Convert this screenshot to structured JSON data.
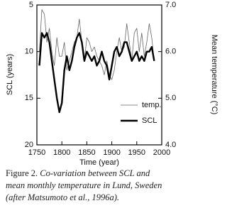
{
  "chart_data": {
    "type": "line",
    "xlabel": "Time (year)",
    "ylabel": "SCL (years)",
    "y2label": "Mean temperature (°C)",
    "x": [
      1755,
      1760,
      1765,
      1770,
      1775,
      1780,
      1785,
      1790,
      1795,
      1800,
      1805,
      1810,
      1815,
      1820,
      1825,
      1830,
      1835,
      1840,
      1845,
      1850,
      1855,
      1860,
      1865,
      1870,
      1875,
      1880,
      1885,
      1890,
      1895,
      1900,
      1905,
      1910,
      1915,
      1920,
      1925,
      1930,
      1935,
      1940,
      1945,
      1950,
      1955,
      1960,
      1965,
      1970,
      1975,
      1980,
      1985
    ],
    "series": [
      {
        "name": "temp.",
        "color": "#666666",
        "axis": "y2",
        "values": [
          6.0,
          6.9,
          6.8,
          6.2,
          6.5,
          6.0,
          5.7,
          6.3,
          5.9,
          5.9,
          6.2,
          5.6,
          5.8,
          6.0,
          6.2,
          6.3,
          6.7,
          6.2,
          5.8,
          6.3,
          6.2,
          6.0,
          6.1,
          5.9,
          5.8,
          5.7,
          5.5,
          5.8,
          5.5,
          5.4,
          5.6,
          6.0,
          6.3,
          6.0,
          6.1,
          6.6,
          6.2,
          5.8,
          6.4,
          6.5,
          6.0,
          6.4,
          5.9,
          6.2,
          6.6,
          6.3,
          5.8
        ]
      },
      {
        "name": "SCL",
        "color": "#000000",
        "values": [
          11.5,
          8.0,
          8.5,
          8.0,
          9.0,
          11.0,
          13.0,
          15.0,
          16.5,
          15.5,
          12.0,
          10.5,
          12.0,
          11.0,
          9.5,
          8.5,
          8.0,
          9.0,
          11.0,
          10.0,
          10.5,
          11.0,
          10.5,
          11.5,
          11.0,
          10.0,
          11.0,
          11.5,
          13.0,
          11.5,
          10.0,
          9.5,
          10.5,
          10.0,
          9.0,
          9.0,
          10.0,
          11.0,
          10.5,
          10.0,
          11.0,
          10.5,
          11.0,
          10.0,
          10.0,
          9.5,
          11.0
        ]
      }
    ],
    "xlim": [
      1750,
      2000
    ],
    "xticks": [
      1750,
      1800,
      1850,
      1900,
      1950,
      2000
    ],
    "ylim": [
      5,
      20
    ],
    "y_inverted": true,
    "yticks": [
      5,
      10,
      15,
      20
    ],
    "y2lim": [
      4,
      7
    ],
    "y2ticks": [
      {
        "value": 7,
        "label": "7.0"
      },
      {
        "value": 6,
        "label": "6.0"
      },
      {
        "value": 5,
        "label": "5.0"
      },
      {
        "value": 4,
        "label": "4.0"
      }
    ],
    "legend": "lower right",
    "caption_label": "Figure 2.",
    "caption_lines": [
      "Co-variation between SCL and",
      "mean monthly temperature in Lund, Sweden",
      "(after Matsumoto et al., 1996a)."
    ]
  }
}
